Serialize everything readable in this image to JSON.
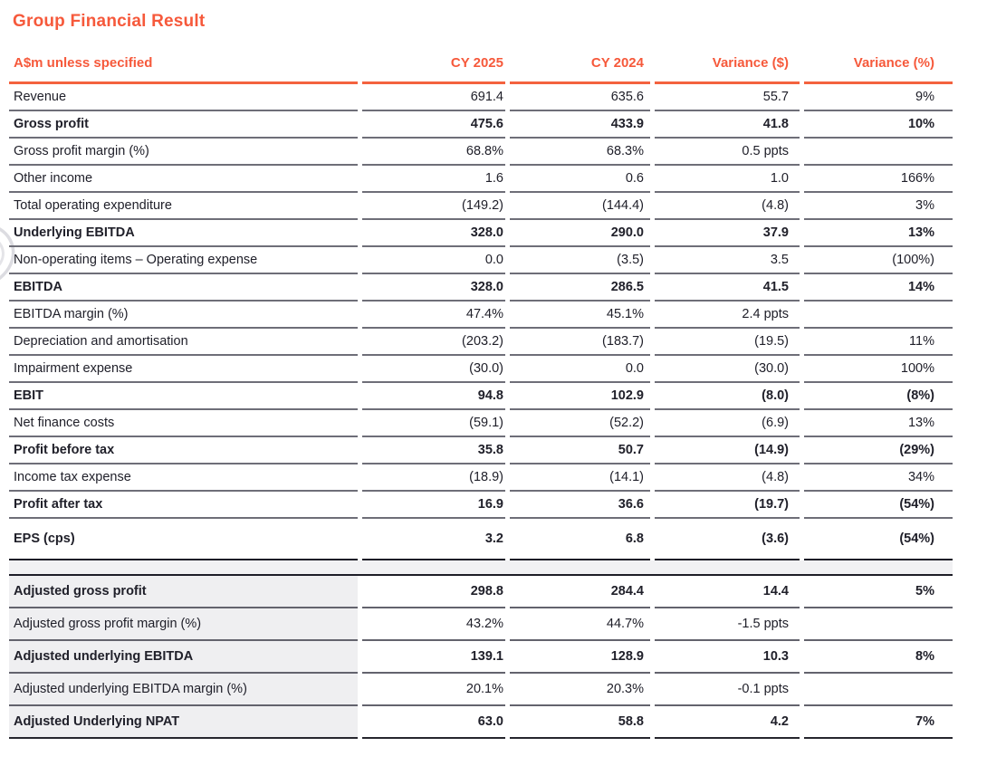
{
  "title": "Group Financial Result",
  "colors": {
    "accent_orange": "#f6593b",
    "text_dark": "#20202a",
    "grid_gray": "#6e6e78",
    "dark_rule": "#1d1d27",
    "label_cell_bg": "#efeff1",
    "spacer_bg": "#f1f1f3"
  },
  "table": {
    "header": {
      "label": "A$m unless specified",
      "columns": [
        "CY 2025",
        "CY 2024",
        "Variance ($)",
        "Variance (%)"
      ]
    },
    "rows": [
      {
        "label": "Revenue",
        "cy2025": "691.4",
        "cy2024": "635.6",
        "variance_dollar": "55.7",
        "variance_pct": "9%",
        "emphasis": false
      },
      {
        "label": "Gross profit",
        "cy2025": "475.6",
        "cy2024": "433.9",
        "variance_dollar": "41.8",
        "variance_pct": "10%",
        "emphasis": true
      },
      {
        "label": "Gross profit margin (%)",
        "cy2025": "68.8%",
        "cy2024": "68.3%",
        "variance_dollar": "0.5 ppts",
        "variance_pct": "",
        "emphasis": false
      },
      {
        "label": "Other income",
        "cy2025": "1.6",
        "cy2024": "0.6",
        "variance_dollar": "1.0",
        "variance_pct": "166%",
        "emphasis": false
      },
      {
        "label": "Total operating expenditure",
        "cy2025": "(149.2)",
        "cy2024": "(144.4)",
        "variance_dollar": "(4.8)",
        "variance_pct": "3%",
        "emphasis": false
      },
      {
        "label": "Underlying EBITDA",
        "cy2025": "328.0",
        "cy2024": "290.0",
        "variance_dollar": "37.9",
        "variance_pct": "13%",
        "emphasis": true
      },
      {
        "label": "Non-operating items – Operating expense",
        "cy2025": "0.0",
        "cy2024": "(3.5)",
        "variance_dollar": "3.5",
        "variance_pct": "(100%)",
        "emphasis": false
      },
      {
        "label": "EBITDA",
        "cy2025": "328.0",
        "cy2024": "286.5",
        "variance_dollar": "41.5",
        "variance_pct": "14%",
        "emphasis": true
      },
      {
        "label": "EBITDA margin (%)",
        "cy2025": "47.4%",
        "cy2024": "45.1%",
        "variance_dollar": "2.4 ppts",
        "variance_pct": "",
        "emphasis": false
      },
      {
        "label": "Depreciation and amortisation",
        "cy2025": "(203.2)",
        "cy2024": "(183.7)",
        "variance_dollar": "(19.5)",
        "variance_pct": "11%",
        "emphasis": false
      },
      {
        "label": "Impairment expense",
        "cy2025": "(30.0)",
        "cy2024": "0.0",
        "variance_dollar": "(30.0)",
        "variance_pct": "100%",
        "emphasis": false
      },
      {
        "label": "EBIT",
        "cy2025": "94.8",
        "cy2024": "102.9",
        "variance_dollar": "(8.0)",
        "variance_pct": "(8%)",
        "emphasis": true
      },
      {
        "label": "Net finance costs",
        "cy2025": "(59.1)",
        "cy2024": "(52.2)",
        "variance_dollar": "(6.9)",
        "variance_pct": "13%",
        "emphasis": false
      },
      {
        "label": "Profit before tax",
        "cy2025": "35.8",
        "cy2024": "50.7",
        "variance_dollar": "(14.9)",
        "variance_pct": "(29%)",
        "emphasis": true
      },
      {
        "label": "Income tax expense",
        "cy2025": "(18.9)",
        "cy2024": "(14.1)",
        "variance_dollar": "(4.8)",
        "variance_pct": "34%",
        "emphasis": false
      },
      {
        "label": "Profit after tax",
        "cy2025": "16.9",
        "cy2024": "36.6",
        "variance_dollar": "(19.7)",
        "variance_pct": "(54%)",
        "emphasis": true
      },
      {
        "label": "EPS (cps)",
        "cy2025": "3.2",
        "cy2024": "6.8",
        "variance_dollar": "(3.6)",
        "variance_pct": "(54%)",
        "emphasis": true
      }
    ],
    "adjusted_rows": [
      {
        "label": "Adjusted gross profit",
        "cy2025": "298.8",
        "cy2024": "284.4",
        "variance_dollar": "14.4",
        "variance_pct": "5%",
        "emphasis": true
      },
      {
        "label": "Adjusted gross profit margin (%)",
        "cy2025": "43.2%",
        "cy2024": "44.7%",
        "variance_dollar": "-1.5 ppts",
        "variance_pct": "",
        "emphasis": false
      },
      {
        "label": "Adjusted underlying EBITDA",
        "cy2025": "139.1",
        "cy2024": "128.9",
        "variance_dollar": "10.3",
        "variance_pct": "8%",
        "emphasis": true
      },
      {
        "label": "Adjusted underlying EBITDA margin (%)",
        "cy2025": "20.1%",
        "cy2024": "20.3%",
        "variance_dollar": "-0.1 ppts",
        "variance_pct": "",
        "emphasis": false
      },
      {
        "label": "Adjusted Underlying NPAT",
        "cy2025": "63.0",
        "cy2024": "58.8",
        "variance_dollar": "4.2",
        "variance_pct": "7%",
        "emphasis": true
      }
    ]
  }
}
